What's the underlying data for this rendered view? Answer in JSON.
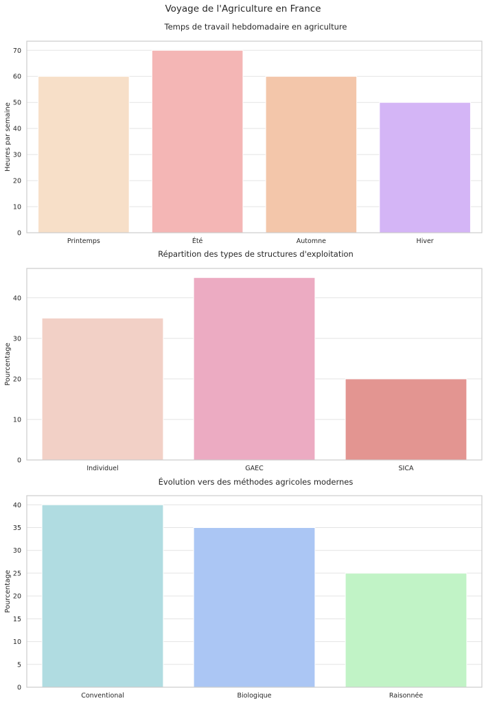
{
  "suptitle": "Voyage de l'Agriculture en France",
  "chart_data": [
    {
      "type": "bar",
      "title": "Temps de travail hebdomadaire en agriculture",
      "xlabel": "",
      "ylabel": "Heures par semaine",
      "categories": [
        "Printemps",
        "Été",
        "Automne",
        "Hiver"
      ],
      "values": [
        60,
        70,
        60,
        50
      ],
      "colors": [
        "#f7dfc8",
        "#f4b6b5",
        "#f3c6aa",
        "#d4b5f6"
      ],
      "ylim": [
        0,
        73.5
      ],
      "yticks": [
        0,
        10,
        20,
        30,
        40,
        50,
        60,
        70
      ],
      "grid": true
    },
    {
      "type": "bar",
      "title": "Répartition des types de structures d'exploitation",
      "xlabel": "",
      "ylabel": "Pourcentage",
      "categories": [
        "Individuel",
        "GAEC",
        "SICA"
      ],
      "values": [
        35,
        45,
        20
      ],
      "colors": [
        "#f2d0c6",
        "#ecabc2",
        "#e39591"
      ],
      "ylim": [
        0,
        47.25
      ],
      "yticks": [
        0,
        10,
        20,
        30,
        40
      ],
      "grid": true
    },
    {
      "type": "bar",
      "title": "Évolution vers des méthodes agricoles modernes",
      "xlabel": "",
      "ylabel": "Pourcentage",
      "categories": [
        "Conventional",
        "Biologique",
        "Raisonnée"
      ],
      "values": [
        40,
        35,
        25
      ],
      "colors": [
        "#b0dce1",
        "#abc6f4",
        "#c1f3c6"
      ],
      "ylim": [
        0,
        42
      ],
      "yticks": [
        0,
        5,
        10,
        15,
        20,
        25,
        30,
        35,
        40
      ],
      "grid": true
    }
  ]
}
